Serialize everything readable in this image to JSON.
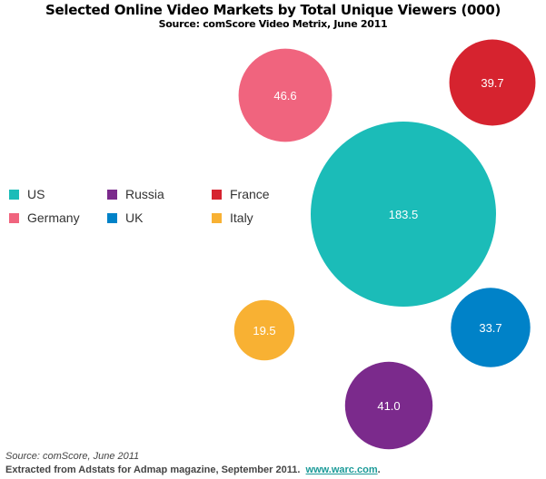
{
  "chart_data": {
    "type": "bubble",
    "title": "Selected Online Video Markets by Total Unique Viewers (000)",
    "subtitle": "Source: comScore Video Metrix, June 2011",
    "legend_placement": "left",
    "series": [
      {
        "name": "US",
        "value": 183.5,
        "color": "#1bbcb8",
        "label": "183.5"
      },
      {
        "name": "Russia",
        "value": 41.0,
        "color": "#7b2a8c",
        "label": "41.0"
      },
      {
        "name": "France",
        "value": 39.7,
        "color": "#d6232f",
        "label": "39.7"
      },
      {
        "name": "Germany",
        "value": 46.6,
        "color": "#f0647e",
        "label": "46.6"
      },
      {
        "name": "UK",
        "value": 33.7,
        "color": "#0082c8",
        "label": "33.7"
      },
      {
        "name": "Italy",
        "value": 19.5,
        "color": "#f8b133",
        "label": "19.5"
      }
    ]
  },
  "footer": {
    "source": "Source: comScore, June 2011",
    "extracted": "Extracted from Adstats for Admap magazine, September 2011.",
    "link": "www.warc.com",
    "period": "."
  }
}
